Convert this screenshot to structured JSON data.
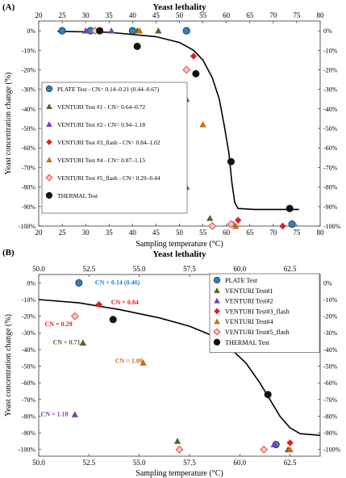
{
  "chart_data": [
    {
      "type": "scatter",
      "panel_label": "(A)",
      "title": "Yeast lethality",
      "xlabel": "Sampling temperature (°C)",
      "ylabel": "Yeast concentration change (%)",
      "xlim": [
        20,
        80
      ],
      "ylim": [
        -100,
        5
      ],
      "x_ticks": [
        "20",
        "25",
        "30",
        "35",
        "40",
        "45",
        "50",
        "55",
        "60",
        "65",
        "70",
        "75",
        "80"
      ],
      "y_ticks": [
        "0%",
        "-10%",
        "-20%",
        "-30%",
        "-40%",
        "-50%",
        "-60%",
        "-70%",
        "-80%",
        "-90%",
        "-100%"
      ],
      "legend_position": "left",
      "series": [
        {
          "name": "PLATE Test - CN= 0.14–0.21 (0.44–0.67)",
          "marker": "circle",
          "color": "#2f7fc1",
          "points": [
            [
              25,
              0
            ],
            [
              31,
              0
            ],
            [
              40,
              0
            ],
            [
              51.5,
              0
            ],
            [
              74,
              -99
            ]
          ]
        },
        {
          "name": "VENTURI Test #1 - CN= 0.64–0.72",
          "marker": "triangle",
          "color": "#4a6b2a",
          "points": [
            [
              41,
              0
            ],
            [
              45.5,
              0
            ],
            [
              51.5,
              -35
            ],
            [
              56.5,
              -96
            ],
            [
              62,
              -100
            ]
          ]
        },
        {
          "name": "VENTURI Test #2 - CN= 0.94–1.18",
          "marker": "triangle",
          "color": "#7b3fb0",
          "points": [
            [
              30,
              0
            ],
            [
              35.5,
              0
            ],
            [
              51.5,
              -80
            ],
            [
              61.5,
              -99
            ]
          ]
        },
        {
          "name": "VENTURI Test #3_flash - CN= 0.84–1.02",
          "marker": "diamond",
          "color": "#e01e1e",
          "points": [
            [
              53,
              -13
            ],
            [
              62.5,
              -97
            ],
            [
              72,
              -100
            ]
          ]
        },
        {
          "name": "VENTURI Test #4 - CN= 0.87–1.15",
          "marker": "triangle",
          "color": "#c86b18",
          "points": [
            [
              41.5,
              0
            ],
            [
              55,
              -48
            ],
            [
              62,
              -100
            ]
          ]
        },
        {
          "name": "VENTURI Test #5_flash - CN= 0.29–0.44",
          "marker": "diamond-open",
          "color": "#e06060",
          "points": [
            [
              32,
              0
            ],
            [
              51.5,
              -20
            ],
            [
              57,
              -100
            ],
            [
              61,
              -99
            ]
          ]
        },
        {
          "name": "THERMAL Test",
          "marker": "circle",
          "color": "#111111",
          "points": [
            [
              33,
              0
            ],
            [
              41,
              -8
            ],
            [
              53.5,
              -22
            ],
            [
              61,
              -67
            ],
            [
              73.5,
              -91
            ]
          ]
        }
      ],
      "fit_curve": [
        [
          24,
          -0.3
        ],
        [
          35,
          -0.8
        ],
        [
          45,
          -3
        ],
        [
          50,
          -6
        ],
        [
          53,
          -10
        ],
        [
          55,
          -15
        ],
        [
          57,
          -24
        ],
        [
          58.5,
          -35
        ],
        [
          59.5,
          -48
        ],
        [
          60.5,
          -62
        ],
        [
          61.2,
          -78
        ],
        [
          61.8,
          -88
        ],
        [
          62.5,
          -91
        ],
        [
          66,
          -91.5
        ],
        [
          75.5,
          -91.5
        ]
      ]
    },
    {
      "type": "scatter",
      "panel_label": "(B)",
      "title": "Yeast lethality",
      "xlabel": "Sampling temperature (°C)",
      "ylabel": "Yeast concentration change (%)",
      "xlim": [
        50,
        64
      ],
      "ylim": [
        -104,
        5
      ],
      "x_ticks": [
        "50.0",
        "52.5",
        "55.0",
        "57.5",
        "60.0",
        "62.5"
      ],
      "y_ticks": [
        "0%",
        "-10%",
        "-20%",
        "-30%",
        "-40%",
        "-50%",
        "-60%",
        "-70%",
        "-80%",
        "-90%",
        "-100%"
      ],
      "legend_position": "top-right",
      "series": [
        {
          "name": "PLATE Test",
          "marker": "circle",
          "color": "#2f7fc1",
          "points": [
            [
              52,
              0
            ],
            [
              61.8,
              -97
            ]
          ]
        },
        {
          "name": "VENTURI Test#1",
          "marker": "triangle",
          "color": "#4a6b2a",
          "points": [
            [
              52.2,
              -36
            ],
            [
              56.9,
              -95
            ],
            [
              62.4,
              -100
            ]
          ]
        },
        {
          "name": "VENTURI Test#2",
          "marker": "triangle",
          "color": "#7b3fb0",
          "points": [
            [
              51.8,
              -79
            ],
            [
              61.7,
              -97
            ]
          ]
        },
        {
          "name": "VENTURI Test#3_flash",
          "marker": "diamond",
          "color": "#e01e1e",
          "points": [
            [
              53,
              -13
            ],
            [
              62.5,
              -96
            ]
          ]
        },
        {
          "name": "VENTURI Test#4",
          "marker": "triangle",
          "color": "#c86b18",
          "points": [
            [
              55.2,
              -48
            ],
            [
              62.5,
              -100
            ]
          ]
        },
        {
          "name": "VENTURI Test#5_flash",
          "marker": "diamond-open",
          "color": "#e06060",
          "points": [
            [
              51.8,
              -20
            ],
            [
              57,
              -100
            ],
            [
              61.2,
              -100
            ]
          ]
        },
        {
          "name": "THERMAL Test",
          "marker": "circle",
          "color": "#111111",
          "points": [
            [
              53.7,
              -22
            ],
            [
              61.4,
              -67
            ]
          ]
        }
      ],
      "annotations": [
        {
          "text": "CN = 0.14 (0.46)",
          "x": 52.8,
          "y": -1,
          "color": "#2f7fc1"
        },
        {
          "text": "CN = 0.84",
          "x": 53.6,
          "y": -13,
          "color": "#e01e1e"
        },
        {
          "text": "CN = 0.29",
          "x": 50.3,
          "y": -26,
          "color": "#e01e1e"
        },
        {
          "text": "CN = 0.71",
          "x": 50.7,
          "y": -37,
          "color": "#4a6b2a"
        },
        {
          "text": "CN = 1.09",
          "x": 53.8,
          "y": -48,
          "color": "#c86b18"
        },
        {
          "text": "CN = 1.18",
          "x": 50.1,
          "y": -80,
          "color": "#7b3fb0"
        }
      ],
      "fit_curve": [
        [
          50,
          -10
        ],
        [
          52,
          -12
        ],
        [
          54,
          -16
        ],
        [
          56,
          -21
        ],
        [
          57.5,
          -26
        ],
        [
          58.5,
          -31
        ],
        [
          59.5,
          -39
        ],
        [
          60.3,
          -48
        ],
        [
          61,
          -60
        ],
        [
          61.5,
          -70
        ],
        [
          62,
          -80
        ],
        [
          62.5,
          -87
        ],
        [
          63,
          -90.5
        ],
        [
          64,
          -91.5
        ]
      ]
    }
  ]
}
